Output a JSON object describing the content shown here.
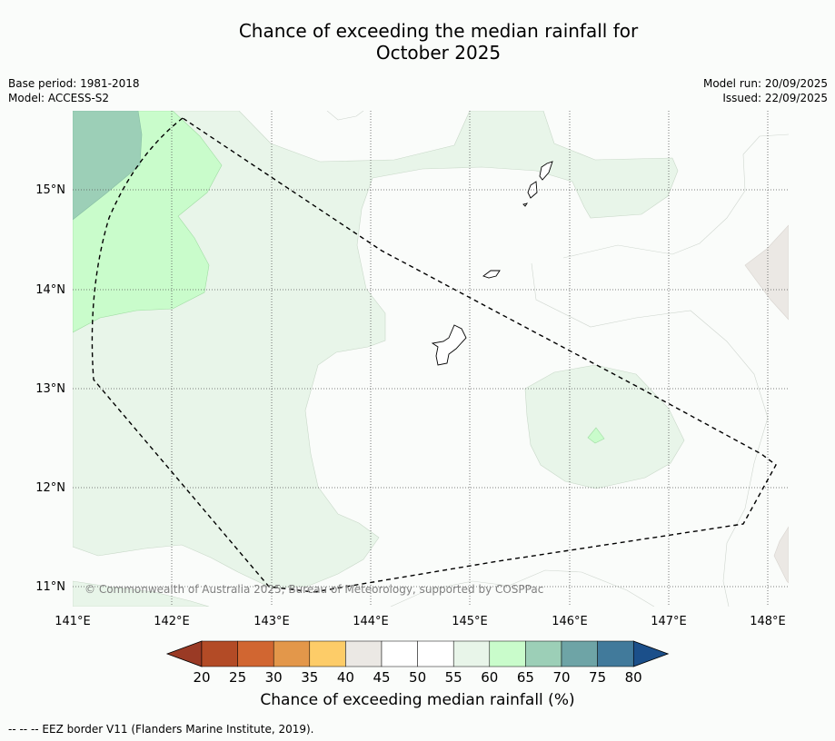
{
  "title": {
    "line1": "Chance of exceeding the median rainfall for",
    "line2": "October 2025"
  },
  "meta": {
    "base_period": "Base period: 1981-2018",
    "model": "Model: ACCESS-S2",
    "model_run": "Model run: 20/09/2025",
    "issued": "Issued: 22/09/2025"
  },
  "map": {
    "longitude_ticks": [
      "141°E",
      "142°E",
      "143°E",
      "144°E",
      "145°E",
      "146°E",
      "147°E",
      "148°E"
    ],
    "latitude_ticks": [
      "15°N",
      "14°N",
      "13°N",
      "12°N",
      "11°N"
    ],
    "copyright": "© Commonwealth of Australia 2025, Bureau of Meteorology, supported by COSPPac",
    "colors": {
      "ocean": "#fafcfa",
      "pct_40_45": "#ebe8e4",
      "pct_55_60": "#e8f5e9",
      "pct_60_65": "#c9fccb",
      "pct_65_70": "#9ccfb7",
      "eez_line": "#000000",
      "gridline": "#555555"
    }
  },
  "colorbar": {
    "title": "Chance of exceeding median rainfall (%)",
    "ticks": [
      "20",
      "25",
      "30",
      "35",
      "40",
      "45",
      "50",
      "55",
      "60",
      "65",
      "70",
      "75",
      "80"
    ],
    "under_color": "#9a3a25",
    "over_color": "#1b4f8a",
    "bins": [
      {
        "range": "20-25",
        "color": "#b34b26"
      },
      {
        "range": "25-30",
        "color": "#d16631"
      },
      {
        "range": "30-35",
        "color": "#e3974a"
      },
      {
        "range": "35-40",
        "color": "#fdcc68"
      },
      {
        "range": "40-45",
        "color": "#ebe8e4"
      },
      {
        "range": "45-50",
        "color": "#ffffff"
      },
      {
        "range": "50-55",
        "color": "#ffffff"
      },
      {
        "range": "55-60",
        "color": "#e8f5e9"
      },
      {
        "range": "60-65",
        "color": "#c9fccb"
      },
      {
        "range": "65-70",
        "color": "#9ccfb7"
      },
      {
        "range": "70-75",
        "color": "#6ea4a6"
      },
      {
        "range": "75-80",
        "color": "#417a9b"
      }
    ]
  },
  "footer": {
    "legend": "--  --  -- EEZ border V11 (Flanders Marine Institute, 2019)."
  }
}
